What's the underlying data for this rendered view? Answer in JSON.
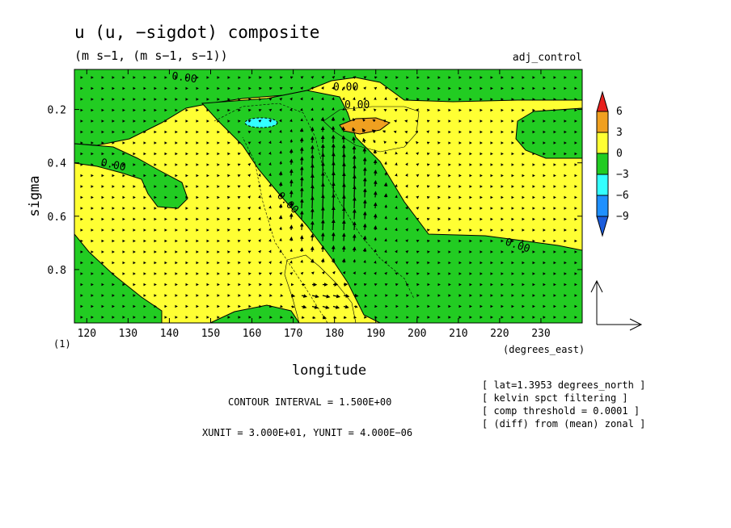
{
  "chart_data": {
    "type": "heatmap",
    "title": "u (u, −sigdot) composite",
    "subtitle": "(m s−1, (m s−1, s−1))",
    "dataset_label": "adj_control",
    "xlabel": "longitude",
    "x_units": "(degrees_east)",
    "ylabel": "sigma",
    "y_corner_label": "(1)",
    "xlim": [
      117,
      240
    ],
    "ylim": [
      1.0,
      0.05
    ],
    "x_ticks": [
      120,
      130,
      140,
      150,
      160,
      170,
      180,
      190,
      200,
      210,
      220,
      230
    ],
    "y_ticks": [
      0.2,
      0.4,
      0.6,
      0.8
    ],
    "y_tick_labels": [
      "0.2",
      "0.4",
      "0.6",
      "0.8"
    ],
    "contour_labels": [
      "0.00",
      "0.00",
      "0.00",
      "0.00",
      "0.00",
      "0.00"
    ],
    "colorbar": {
      "levels": [
        6,
        3,
        0,
        -3,
        -6,
        -9
      ],
      "level_labels": [
        "6",
        "3",
        "0",
        "−3",
        "−6",
        "−9"
      ],
      "colors": [
        "#e8201e",
        "#f0a020",
        "#ffff33",
        "#22cc22",
        "#33ffff",
        "#1e90ff",
        "#1a5cdc"
      ]
    },
    "contour_interval_text": "CONTOUR INTERVAL = 1.500E+00",
    "unit_text": "XUNIT = 3.000E+01, YUNIT = 4.000E−06",
    "annotations": [
      "[ lat=1.3953 degrees_north ]",
      "[ kelvin spct filtering ]",
      "[ comp threshold = 0.0001 ]",
      "[ (diff) from (mean) zonal ]"
    ]
  }
}
